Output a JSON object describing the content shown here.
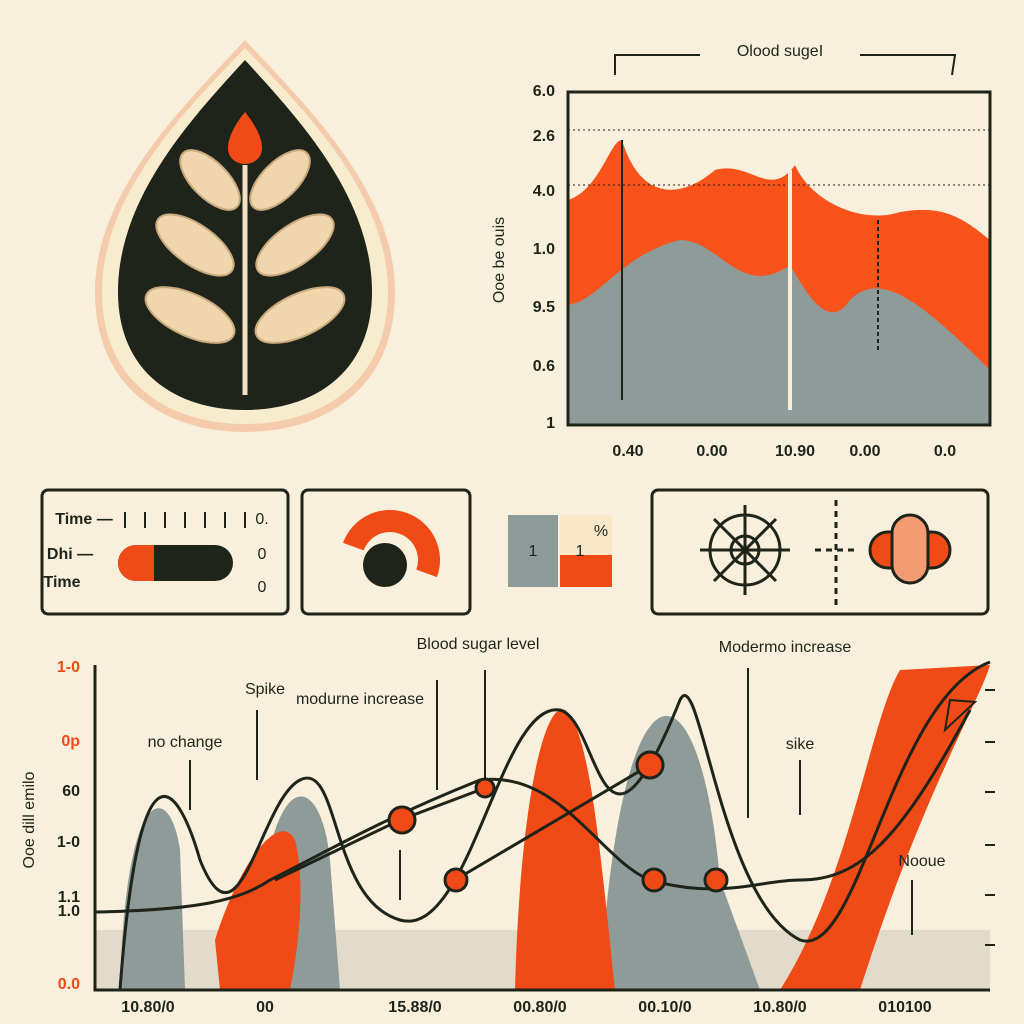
{
  "top_chart": {
    "title": "Olood sugeI",
    "y_axis_title": "Ooe be ouis",
    "y_labels": [
      "6.0",
      "2.6",
      "4.0",
      "1.0",
      "9.5",
      "0.6",
      "1"
    ],
    "x_labels": [
      "0.40",
      "0.00",
      "10.90",
      "0.00",
      "0.0"
    ]
  },
  "controls": {
    "rows": [
      "Time —",
      "Dhi —",
      "Time"
    ],
    "readouts": [
      "0.",
      "0",
      "0"
    ],
    "counter": [
      "1",
      "1"
    ],
    "counter_unit": "%"
  },
  "bottom_chart": {
    "y_axis_title": "Ooe dill emilo",
    "y_labels": [
      "1-0",
      "0p",
      "60",
      "1-0",
      "1.1",
      "1.0",
      "0.0"
    ],
    "x_labels": [
      "10.80/0",
      "00",
      "15.88/0",
      "00.80/0",
      "00.10/0",
      "10.80/0",
      "010100"
    ],
    "annotations": [
      "Blood sugar level",
      "Spike",
      "modurne increase",
      "no change",
      "Modermo increase",
      "sike",
      "Nooue"
    ]
  }
}
